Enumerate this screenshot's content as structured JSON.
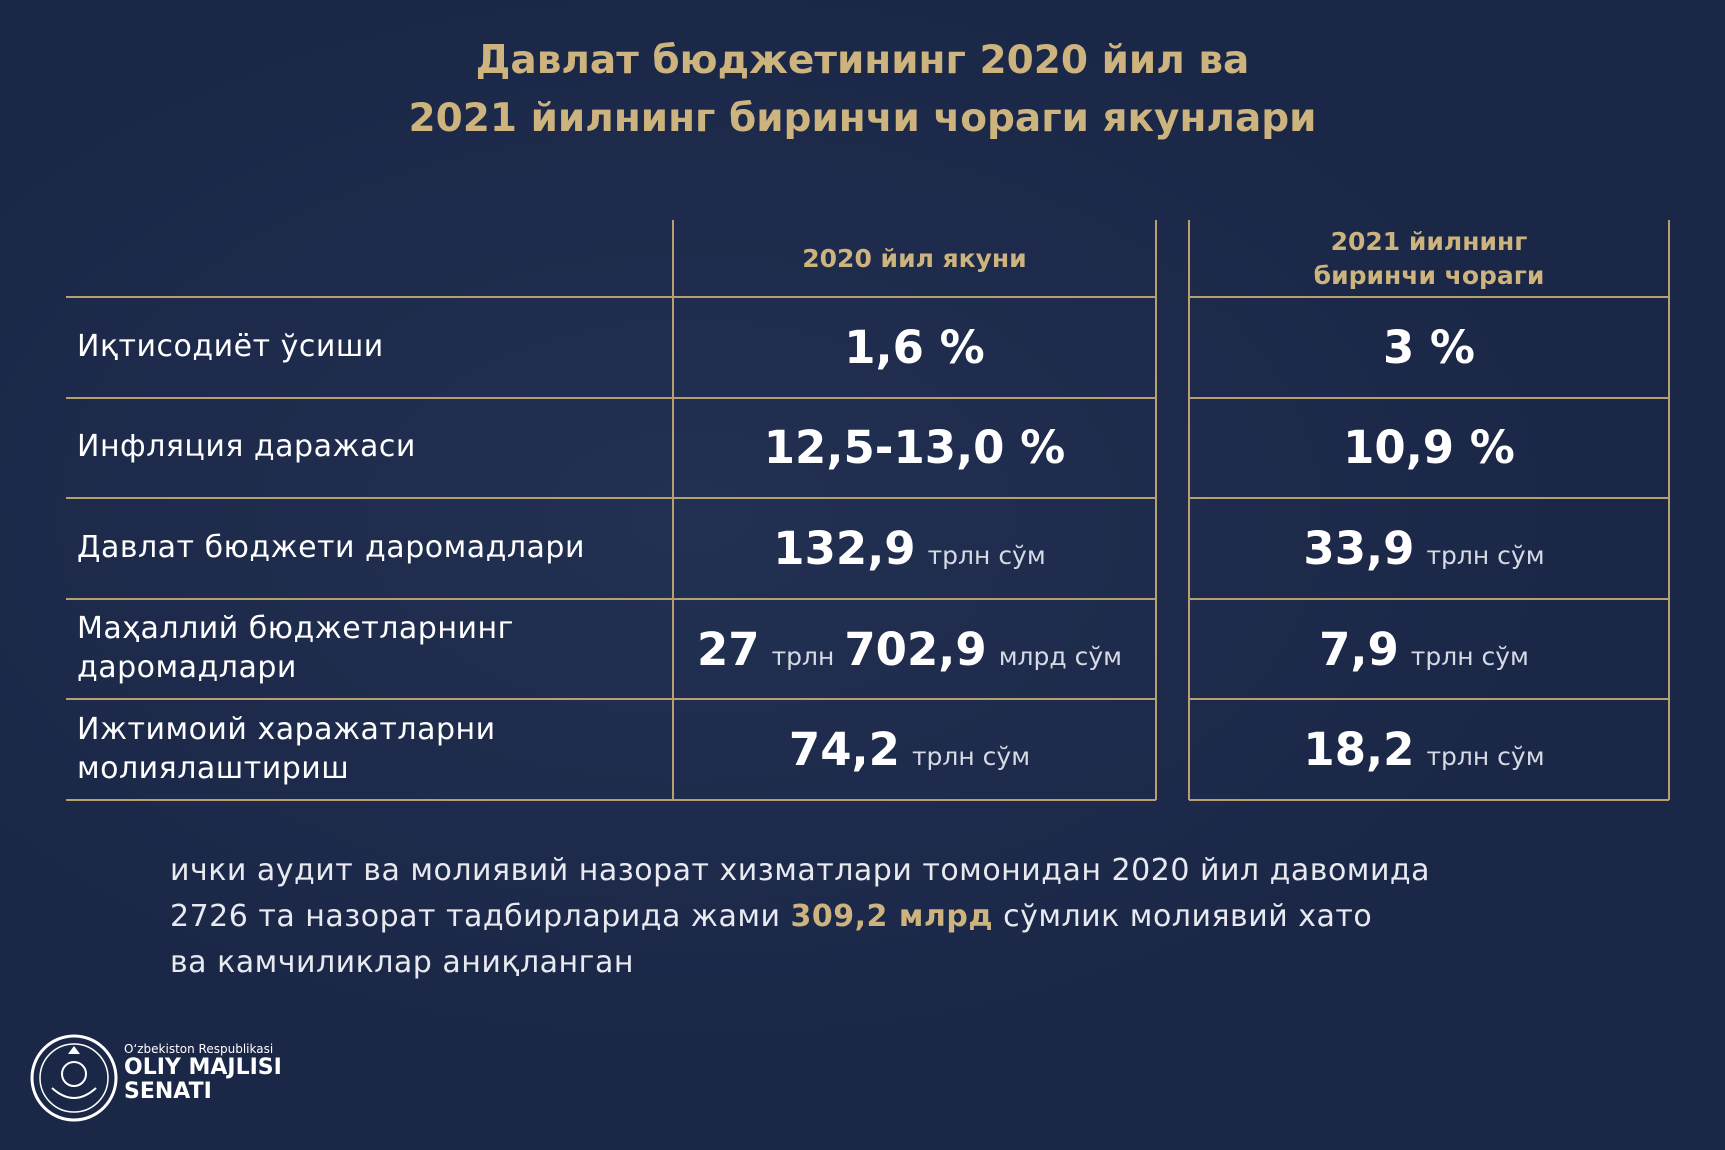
{
  "header": {
    "title_lines": [
      "Давлат бюджетининг 2020 йил ва",
      "2021 йилнинг биринчи чораги якунлари"
    ]
  },
  "table": {
    "columns": [
      [
        "2020 йил якуни"
      ],
      [
        "2021 йилнинг",
        "биринчи чораги"
      ]
    ],
    "rows": [
      {
        "label": [
          "Иқтисодиёт ўсиши"
        ],
        "cells": [
          [
            {
              "value": "1,6 %"
            }
          ],
          [
            {
              "value": "3 %"
            }
          ]
        ]
      },
      {
        "label": [
          "Инфляция даражаси"
        ],
        "cells": [
          [
            {
              "value": "12,5-13,0 %"
            }
          ],
          [
            {
              "value": "10,9 %"
            }
          ]
        ]
      },
      {
        "label": [
          "Давлат бюджети даромадлари"
        ],
        "cells": [
          [
            {
              "value": "132,9",
              "unit": "трлн сўм"
            }
          ],
          [
            {
              "value": "33,9",
              "unit": "трлн сўм"
            }
          ]
        ]
      },
      {
        "label": [
          "Маҳаллий бюджетларнинг",
          "даромадлари"
        ],
        "cells": [
          [
            {
              "value": "27",
              "unit": "трлн"
            },
            {
              "value": "702,9",
              "unit": "млрд сўм"
            }
          ],
          [
            {
              "value": "7,9",
              "unit": "трлн сўм"
            }
          ]
        ]
      },
      {
        "label": [
          "Ижтимоий харажатларни",
          "молиялаштириш"
        ],
        "cells": [
          [
            {
              "value": "74,2",
              "unit": "трлн сўм"
            }
          ],
          [
            {
              "value": "18,2",
              "unit": "трлн сўм"
            }
          ]
        ]
      }
    ]
  },
  "note": {
    "before": "ички аудит ва молиявий назорат хизматлари томонидан 2020 йил давомида\n2726 та назорат тадбирларида жами ",
    "highlight": "309,2 млрд",
    "after": " сўмлик молиявий хато\nва камчиликлар аниқланган"
  },
  "logo": {
    "line1": "Oʻzbekiston Respublikasi",
    "line2": "OLIY MAJLISI",
    "line3": "SENATI"
  }
}
